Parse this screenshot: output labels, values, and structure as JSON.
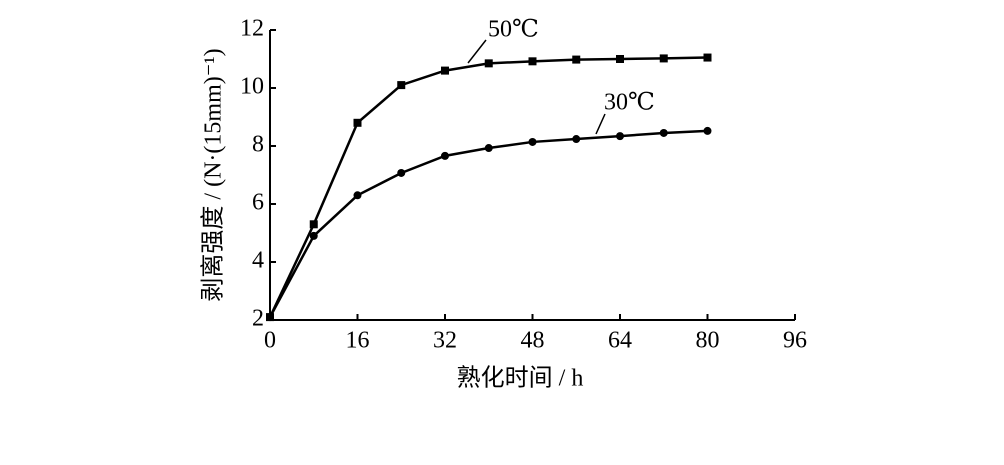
{
  "chart_data": {
    "type": "line",
    "x_label": "熟化时间 / h",
    "y_label": "剥离强度 / (N·(15mm)⁻¹)",
    "x": [
      0,
      8,
      16,
      24,
      32,
      40,
      48,
      56,
      64,
      72,
      80
    ],
    "series": [
      {
        "name": "50℃",
        "color": "#000000",
        "marker": "square",
        "values": [
          2.1,
          5.3,
          8.8,
          10.1,
          10.6,
          10.85,
          10.92,
          10.98,
          11.0,
          11.02,
          11.05
        ]
      },
      {
        "name": "30℃",
        "color": "#000000",
        "marker": "circle",
        "values": [
          2.1,
          4.9,
          6.3,
          7.07,
          7.66,
          7.93,
          8.14,
          8.24,
          8.34,
          8.45,
          8.52
        ]
      }
    ],
    "xlim": [
      0,
      96
    ],
    "xticks": [
      0,
      16,
      32,
      48,
      64,
      80,
      96
    ],
    "ylim": [
      2,
      12
    ],
    "yticks": [
      2,
      4,
      6,
      8,
      10,
      12
    ],
    "grid": false
  }
}
